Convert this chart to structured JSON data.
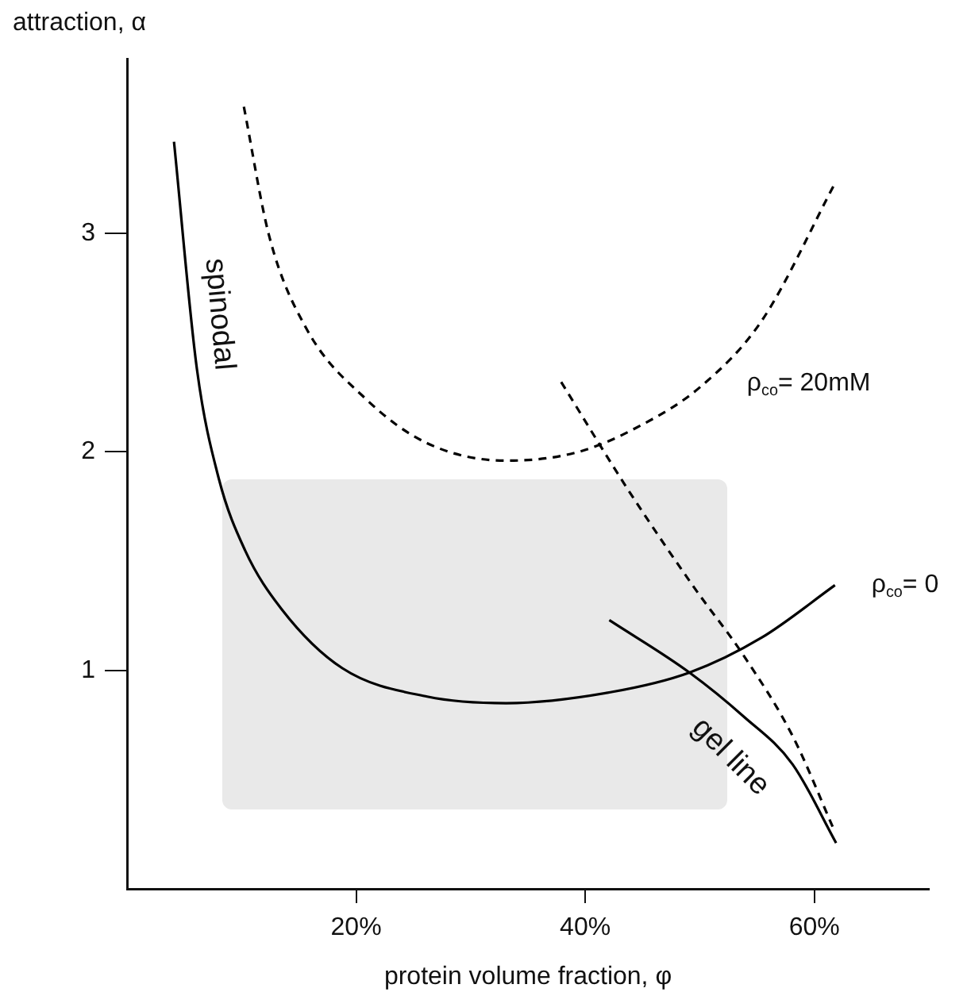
{
  "chart_data": {
    "type": "line",
    "xlabel": "protein volume fraction, φ",
    "ylabel": "attraction, α",
    "xlim": [
      0,
      70
    ],
    "xticks": [
      {
        "value": 20,
        "label": "20%"
      },
      {
        "value": 40,
        "label": "40%"
      },
      {
        "value": 60,
        "label": "60%"
      }
    ],
    "ylim": [
      0,
      3.8
    ],
    "yticks": [
      1,
      2,
      3
    ],
    "grid": false,
    "legend": false,
    "marker": "none",
    "series": [
      {
        "name": "ρ$_{co}$= 0",
        "color": "#000000",
        "line_style": "solid",
        "x": [
          4.1,
          6.1,
          8.0,
          10.3,
          13.5,
          18.8,
          26.2,
          33.1,
          42.2,
          49.1,
          55.4,
          61.8
        ],
        "values": [
          3.42,
          2.38,
          1.88,
          1.55,
          1.28,
          1.01,
          0.88,
          0.85,
          0.9,
          0.99,
          1.15,
          1.39
        ]
      },
      {
        "name": "ρ$_{co}$= 20mM",
        "color": "#000000",
        "line_style": "dashed",
        "x": [
          10.2,
          12.4,
          15.6,
          20.9,
          26.2,
          33.1,
          39.4,
          44.8,
          50.1,
          55.4,
          61.9
        ],
        "values": [
          3.58,
          2.99,
          2.57,
          2.24,
          2.04,
          1.96,
          2.0,
          2.12,
          2.3,
          2.6,
          3.24
        ]
      },
      {
        "color": "#000000",
        "line_style": "solid",
        "x": [
          42.1,
          49.1,
          53.8,
          58.1,
          61.9
        ],
        "values": [
          1.23,
          0.99,
          0.79,
          0.57,
          0.21
        ]
      },
      {
        "color": "#000000",
        "line_style": "dashed",
        "x": [
          37.9,
          43.7,
          49.5,
          53.8,
          58.1,
          61.8
        ],
        "values": [
          2.32,
          1.83,
          1.38,
          1.07,
          0.7,
          0.26
        ]
      }
    ],
    "annotations": [
      "spinodal",
      "gel line"
    ]
  }
}
